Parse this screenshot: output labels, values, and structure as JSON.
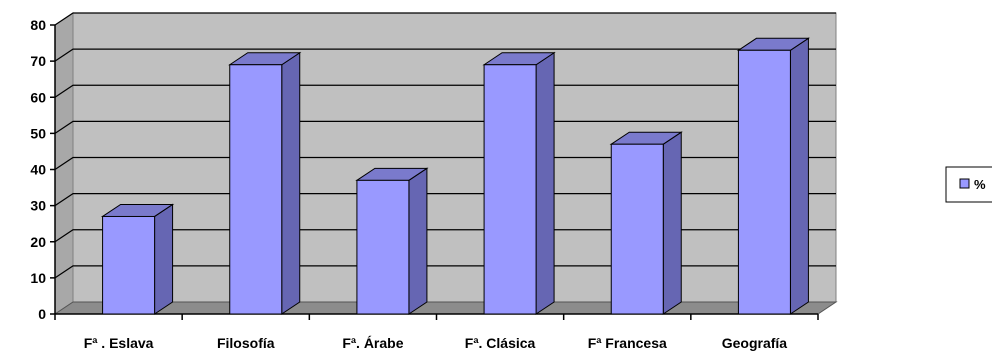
{
  "chart_data": {
    "type": "bar",
    "categories": [
      "Fª .  Eslava",
      "Filosofía",
      "Fª. Árabe",
      "Fª. Clásica",
      "Fª Francesa",
      "Geografía"
    ],
    "series": [
      {
        "name": "%",
        "values": [
          27,
          69,
          37,
          69,
          47,
          73
        ]
      }
    ],
    "ylim": [
      0,
      80
    ],
    "yticks": [
      0,
      10,
      20,
      30,
      40,
      50,
      60,
      70,
      80
    ],
    "grid": true,
    "legend_position": "right",
    "style": "3d-column",
    "colors": {
      "bar_front": "#9999ff",
      "bar_side": "#6666b3",
      "bar_top": "#7a7acc",
      "wall": "#c0c0c0",
      "floor": "#8c8c8c"
    }
  }
}
